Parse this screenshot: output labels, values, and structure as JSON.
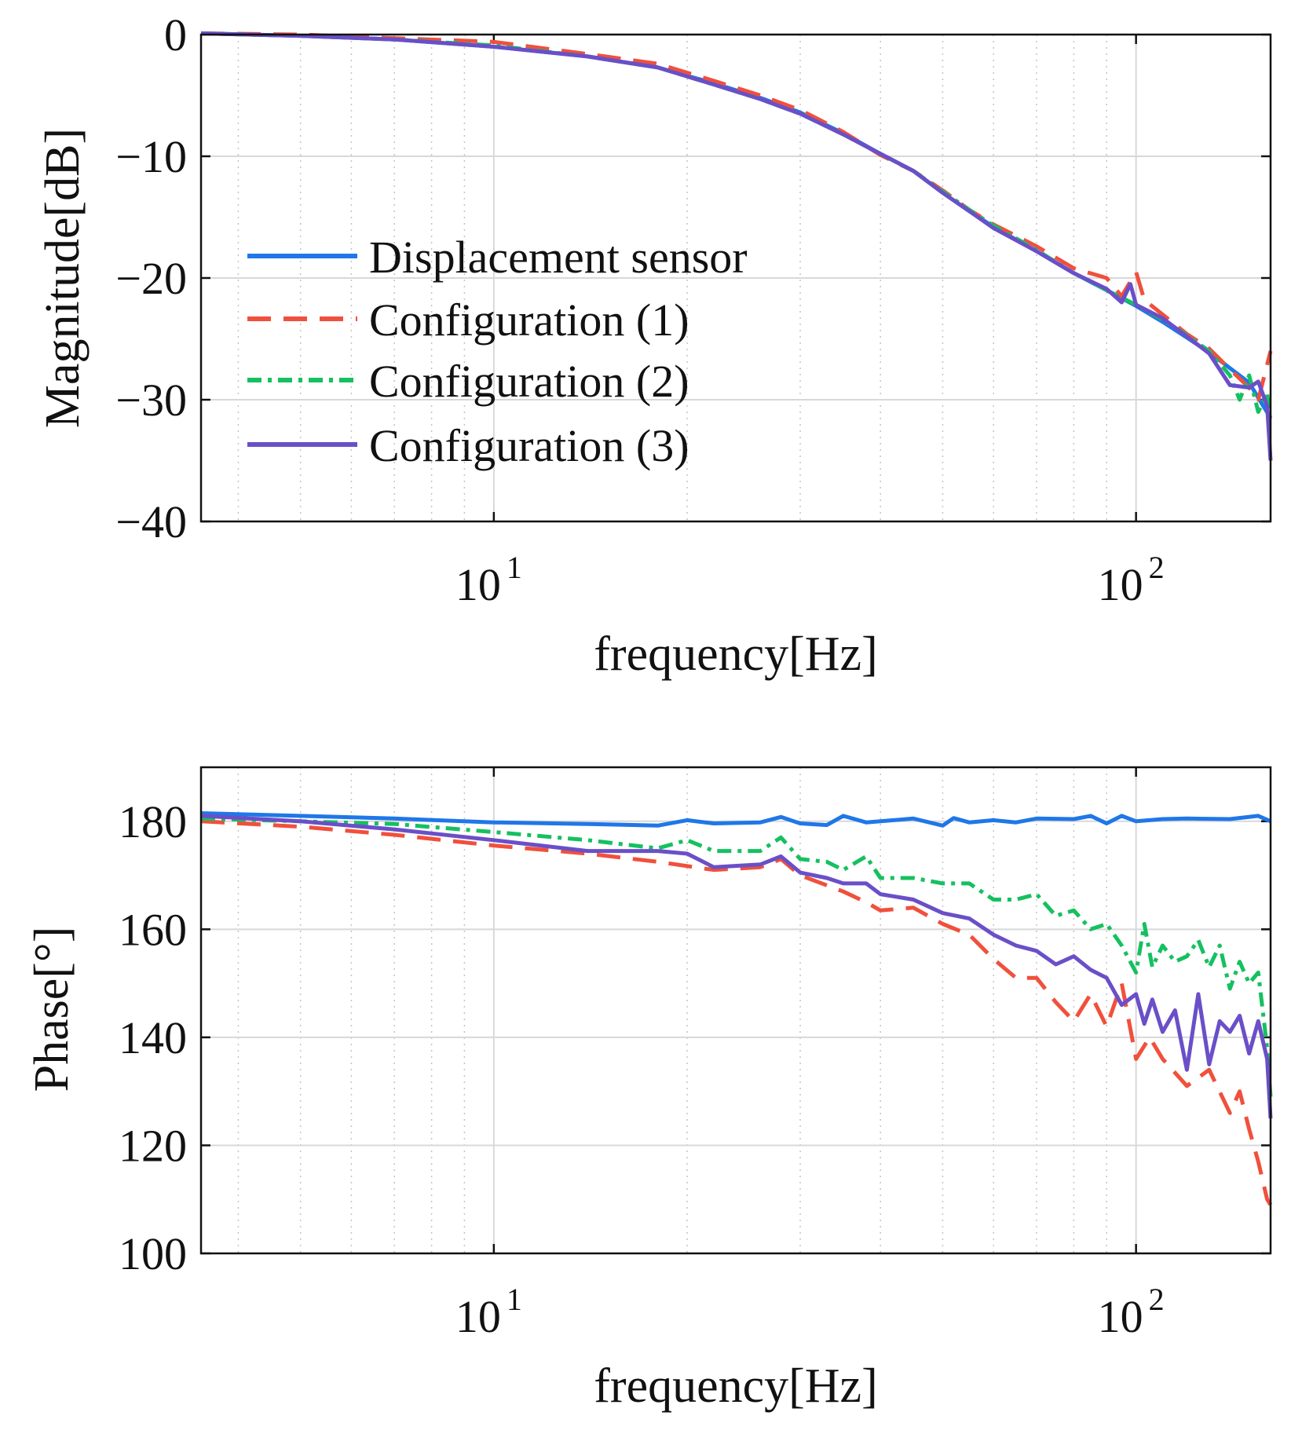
{
  "chart_data": [
    {
      "type": "line",
      "id": "magnitude",
      "title": "",
      "xlabel": "frequency[Hz]",
      "ylabel": "Magnitude[dB]",
      "xscale": "log",
      "xlim": [
        3.5,
        162
      ],
      "ylim": [
        -40,
        0
      ],
      "yticks": [
        0,
        -10,
        -20,
        -30,
        -40
      ],
      "ytick_labels": [
        "0",
        "−10",
        "−20",
        "−30",
        "−40"
      ],
      "xticks": [
        10,
        100
      ],
      "xtick_bases": [
        "10",
        "10"
      ],
      "xtick_exponents": [
        "1",
        "2"
      ],
      "grid": true,
      "legend_position": "middle-left",
      "series": [
        {
          "name": "Displacement sensor",
          "color": "#1f77e8",
          "dash": "solid",
          "x": [
            3.5,
            5,
            7,
            10,
            14,
            18,
            22,
            26,
            30,
            35,
            40,
            45,
            50,
            55,
            60,
            70,
            80,
            90,
            100,
            110,
            120,
            130,
            140,
            150,
            162
          ],
          "y": [
            0.1,
            -0.1,
            -0.4,
            -1.0,
            -1.8,
            -2.7,
            -4.0,
            -5.2,
            -6.4,
            -8.1,
            -9.8,
            -11.2,
            -13.0,
            -14.5,
            -15.8,
            -17.8,
            -19.6,
            -21.0,
            -22.3,
            -23.6,
            -24.9,
            -26.1,
            -27.4,
            -28.6,
            -31.5
          ]
        },
        {
          "name": "Configuration (1)",
          "color": "#f0503c",
          "dash": "dashed",
          "x": [
            3.5,
            5,
            7,
            10,
            14,
            18,
            22,
            26,
            30,
            35,
            40,
            45,
            50,
            55,
            60,
            70,
            80,
            90,
            95,
            100,
            103,
            110,
            120,
            130,
            140,
            150,
            155,
            162
          ],
          "y": [
            0.1,
            0.0,
            -0.3,
            -0.6,
            -1.6,
            -2.4,
            -3.8,
            -5.0,
            -6.2,
            -8.0,
            -9.9,
            -11.2,
            -12.8,
            -14.4,
            -15.6,
            -17.4,
            -19.2,
            -20.0,
            -21.5,
            -19.5,
            -21.8,
            -23.0,
            -24.6,
            -25.8,
            -27.5,
            -29.0,
            -30.0,
            -26.0
          ]
        },
        {
          "name": "Configuration (2)",
          "color": "#16c060",
          "dash": "dashdot",
          "x": [
            3.5,
            5,
            7,
            10,
            14,
            18,
            22,
            26,
            30,
            35,
            40,
            45,
            50,
            55,
            60,
            70,
            80,
            90,
            100,
            110,
            120,
            130,
            140,
            145,
            150,
            155,
            160,
            162
          ],
          "y": [
            0.1,
            -0.1,
            -0.4,
            -0.9,
            -1.8,
            -2.7,
            -4.1,
            -5.3,
            -6.5,
            -8.2,
            -9.8,
            -11.2,
            -12.9,
            -14.4,
            -15.7,
            -17.7,
            -19.6,
            -21.0,
            -22.2,
            -23.4,
            -24.7,
            -26.0,
            -28.0,
            -30.0,
            -28.0,
            -31.0,
            -29.5,
            -32.0
          ]
        },
        {
          "name": "Configuration (3)",
          "color": "#6a4fc8",
          "dash": "solid",
          "x": [
            3.5,
            5,
            7,
            10,
            14,
            18,
            22,
            26,
            30,
            35,
            40,
            45,
            50,
            55,
            60,
            70,
            80,
            90,
            95,
            98,
            100,
            110,
            120,
            130,
            140,
            150,
            155,
            160,
            162
          ],
          "y": [
            0.1,
            -0.1,
            -0.4,
            -1.0,
            -1.8,
            -2.7,
            -4.1,
            -5.3,
            -6.5,
            -8.2,
            -9.8,
            -11.2,
            -13.0,
            -14.5,
            -15.9,
            -17.8,
            -19.6,
            -20.9,
            -22.0,
            -20.5,
            -22.2,
            -23.3,
            -24.8,
            -26.2,
            -28.8,
            -29.0,
            -28.5,
            -30.5,
            -35.0
          ]
        }
      ]
    },
    {
      "type": "line",
      "id": "phase",
      "title": "",
      "xlabel": "frequency[Hz]",
      "ylabel": "Phase[°]",
      "xscale": "log",
      "xlim": [
        3.5,
        162
      ],
      "ylim": [
        100,
        190
      ],
      "yticks": [
        100,
        120,
        140,
        160,
        180
      ],
      "ytick_labels": [
        "100",
        "120",
        "140",
        "160",
        "180"
      ],
      "xticks": [
        10,
        100
      ],
      "xtick_bases": [
        "10",
        "10"
      ],
      "xtick_exponents": [
        "1",
        "2"
      ],
      "grid": true,
      "series": [
        {
          "name": "Displacement sensor",
          "color": "#1f77e8",
          "dash": "solid",
          "x": [
            3.5,
            5,
            7,
            10,
            14,
            18,
            20,
            22,
            26,
            28,
            30,
            33,
            35,
            38,
            40,
            45,
            50,
            52,
            55,
            60,
            65,
            70,
            80,
            85,
            90,
            95,
            100,
            110,
            120,
            140,
            155,
            162
          ],
          "y": [
            181.5,
            181.0,
            180.5,
            179.8,
            179.5,
            179.2,
            180.2,
            179.6,
            179.8,
            180.8,
            179.6,
            179.3,
            181.0,
            179.8,
            180.0,
            180.5,
            179.2,
            180.6,
            179.8,
            180.2,
            179.8,
            180.5,
            180.4,
            181.0,
            179.6,
            181.0,
            180.0,
            180.4,
            180.5,
            180.4,
            181.0,
            180.0
          ]
        },
        {
          "name": "Configuration (1)",
          "color": "#f0503c",
          "dash": "dashed",
          "x": [
            3.5,
            5,
            7,
            10,
            14,
            18,
            22,
            26,
            28,
            30,
            35,
            38,
            40,
            45,
            50,
            55,
            60,
            65,
            70,
            75,
            80,
            85,
            90,
            95,
            100,
            105,
            110,
            120,
            130,
            140,
            145,
            150,
            155,
            160,
            162
          ],
          "y": [
            180.0,
            179.0,
            177.5,
            175.5,
            174.0,
            172.5,
            171.0,
            171.5,
            173.0,
            170.0,
            167.0,
            165.0,
            163.5,
            164.0,
            161.0,
            159.0,
            154.5,
            151.0,
            151.0,
            146.5,
            143.0,
            148.0,
            142.0,
            150.0,
            136.0,
            140.0,
            136.0,
            131.0,
            134.0,
            126.0,
            130.0,
            123.0,
            117.0,
            110.0,
            109.0
          ]
        },
        {
          "name": "Configuration (2)",
          "color": "#16c060",
          "dash": "dashdot",
          "x": [
            3.5,
            5,
            7,
            10,
            14,
            18,
            20,
            22,
            26,
            28,
            30,
            33,
            35,
            38,
            40,
            45,
            50,
            55,
            60,
            65,
            70,
            75,
            80,
            85,
            90,
            95,
            100,
            103,
            106,
            110,
            115,
            120,
            125,
            130,
            135,
            140,
            145,
            150,
            155,
            160,
            162
          ],
          "y": [
            180.5,
            180.0,
            179.5,
            178.0,
            176.5,
            175.0,
            176.5,
            174.5,
            174.5,
            177.0,
            173.0,
            172.5,
            171.0,
            173.5,
            169.5,
            169.5,
            168.5,
            168.5,
            165.5,
            165.5,
            166.5,
            162.5,
            163.5,
            160.0,
            161.0,
            157.0,
            152.0,
            161.0,
            153.0,
            157.0,
            154.0,
            155.0,
            158.0,
            153.0,
            157.0,
            149.0,
            154.0,
            150.0,
            152.0,
            138.0,
            129.0
          ]
        },
        {
          "name": "Configuration (3)",
          "color": "#6a4fc8",
          "dash": "solid",
          "x": [
            3.5,
            5,
            7,
            10,
            14,
            18,
            20,
            22,
            26,
            28,
            30,
            33,
            35,
            38,
            40,
            45,
            50,
            55,
            60,
            65,
            70,
            75,
            80,
            85,
            90,
            95,
            100,
            103,
            106,
            110,
            115,
            120,
            125,
            130,
            135,
            140,
            145,
            150,
            155,
            160,
            162
          ],
          "y": [
            181.0,
            180.0,
            178.5,
            176.5,
            174.5,
            174.5,
            174.0,
            171.5,
            172.0,
            173.5,
            170.5,
            169.5,
            168.5,
            168.5,
            166.5,
            165.5,
            163.0,
            162.0,
            159.0,
            157.0,
            156.0,
            153.5,
            155.0,
            152.5,
            151.0,
            146.0,
            148.0,
            142.5,
            147.0,
            141.0,
            145.0,
            134.0,
            148.0,
            135.0,
            143.0,
            141.0,
            144.0,
            137.0,
            143.0,
            136.0,
            125.0
          ]
        }
      ]
    }
  ]
}
